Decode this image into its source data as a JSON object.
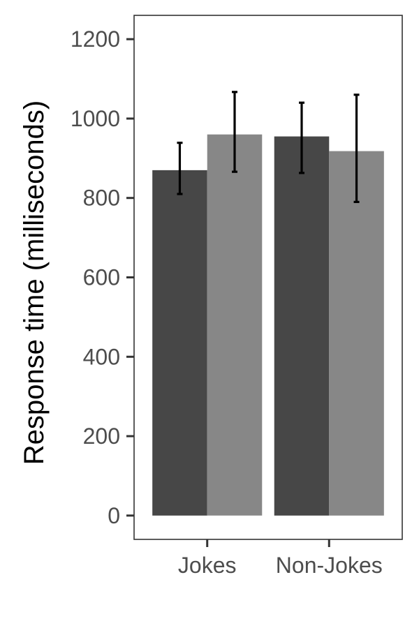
{
  "chart_data": {
    "type": "bar",
    "title": "",
    "xlabel": "",
    "ylabel": "Response time (milliseconds)",
    "categories": [
      "Jokes",
      "Non-Jokes"
    ],
    "ylim": [
      -60,
      1260
    ],
    "yticks": [
      0,
      200,
      400,
      600,
      800,
      1000,
      1200
    ],
    "grid": false,
    "legend": "none",
    "series": [
      {
        "values": [
          870,
          955
        ],
        "error_low": [
          810,
          863
        ],
        "error_high": [
          939,
          1040
        ],
        "color": "#474747"
      },
      {
        "values": [
          960,
          918
        ],
        "error_low": [
          866,
          790
        ],
        "error_high": [
          1067,
          1060
        ],
        "color": "#878787"
      }
    ]
  }
}
